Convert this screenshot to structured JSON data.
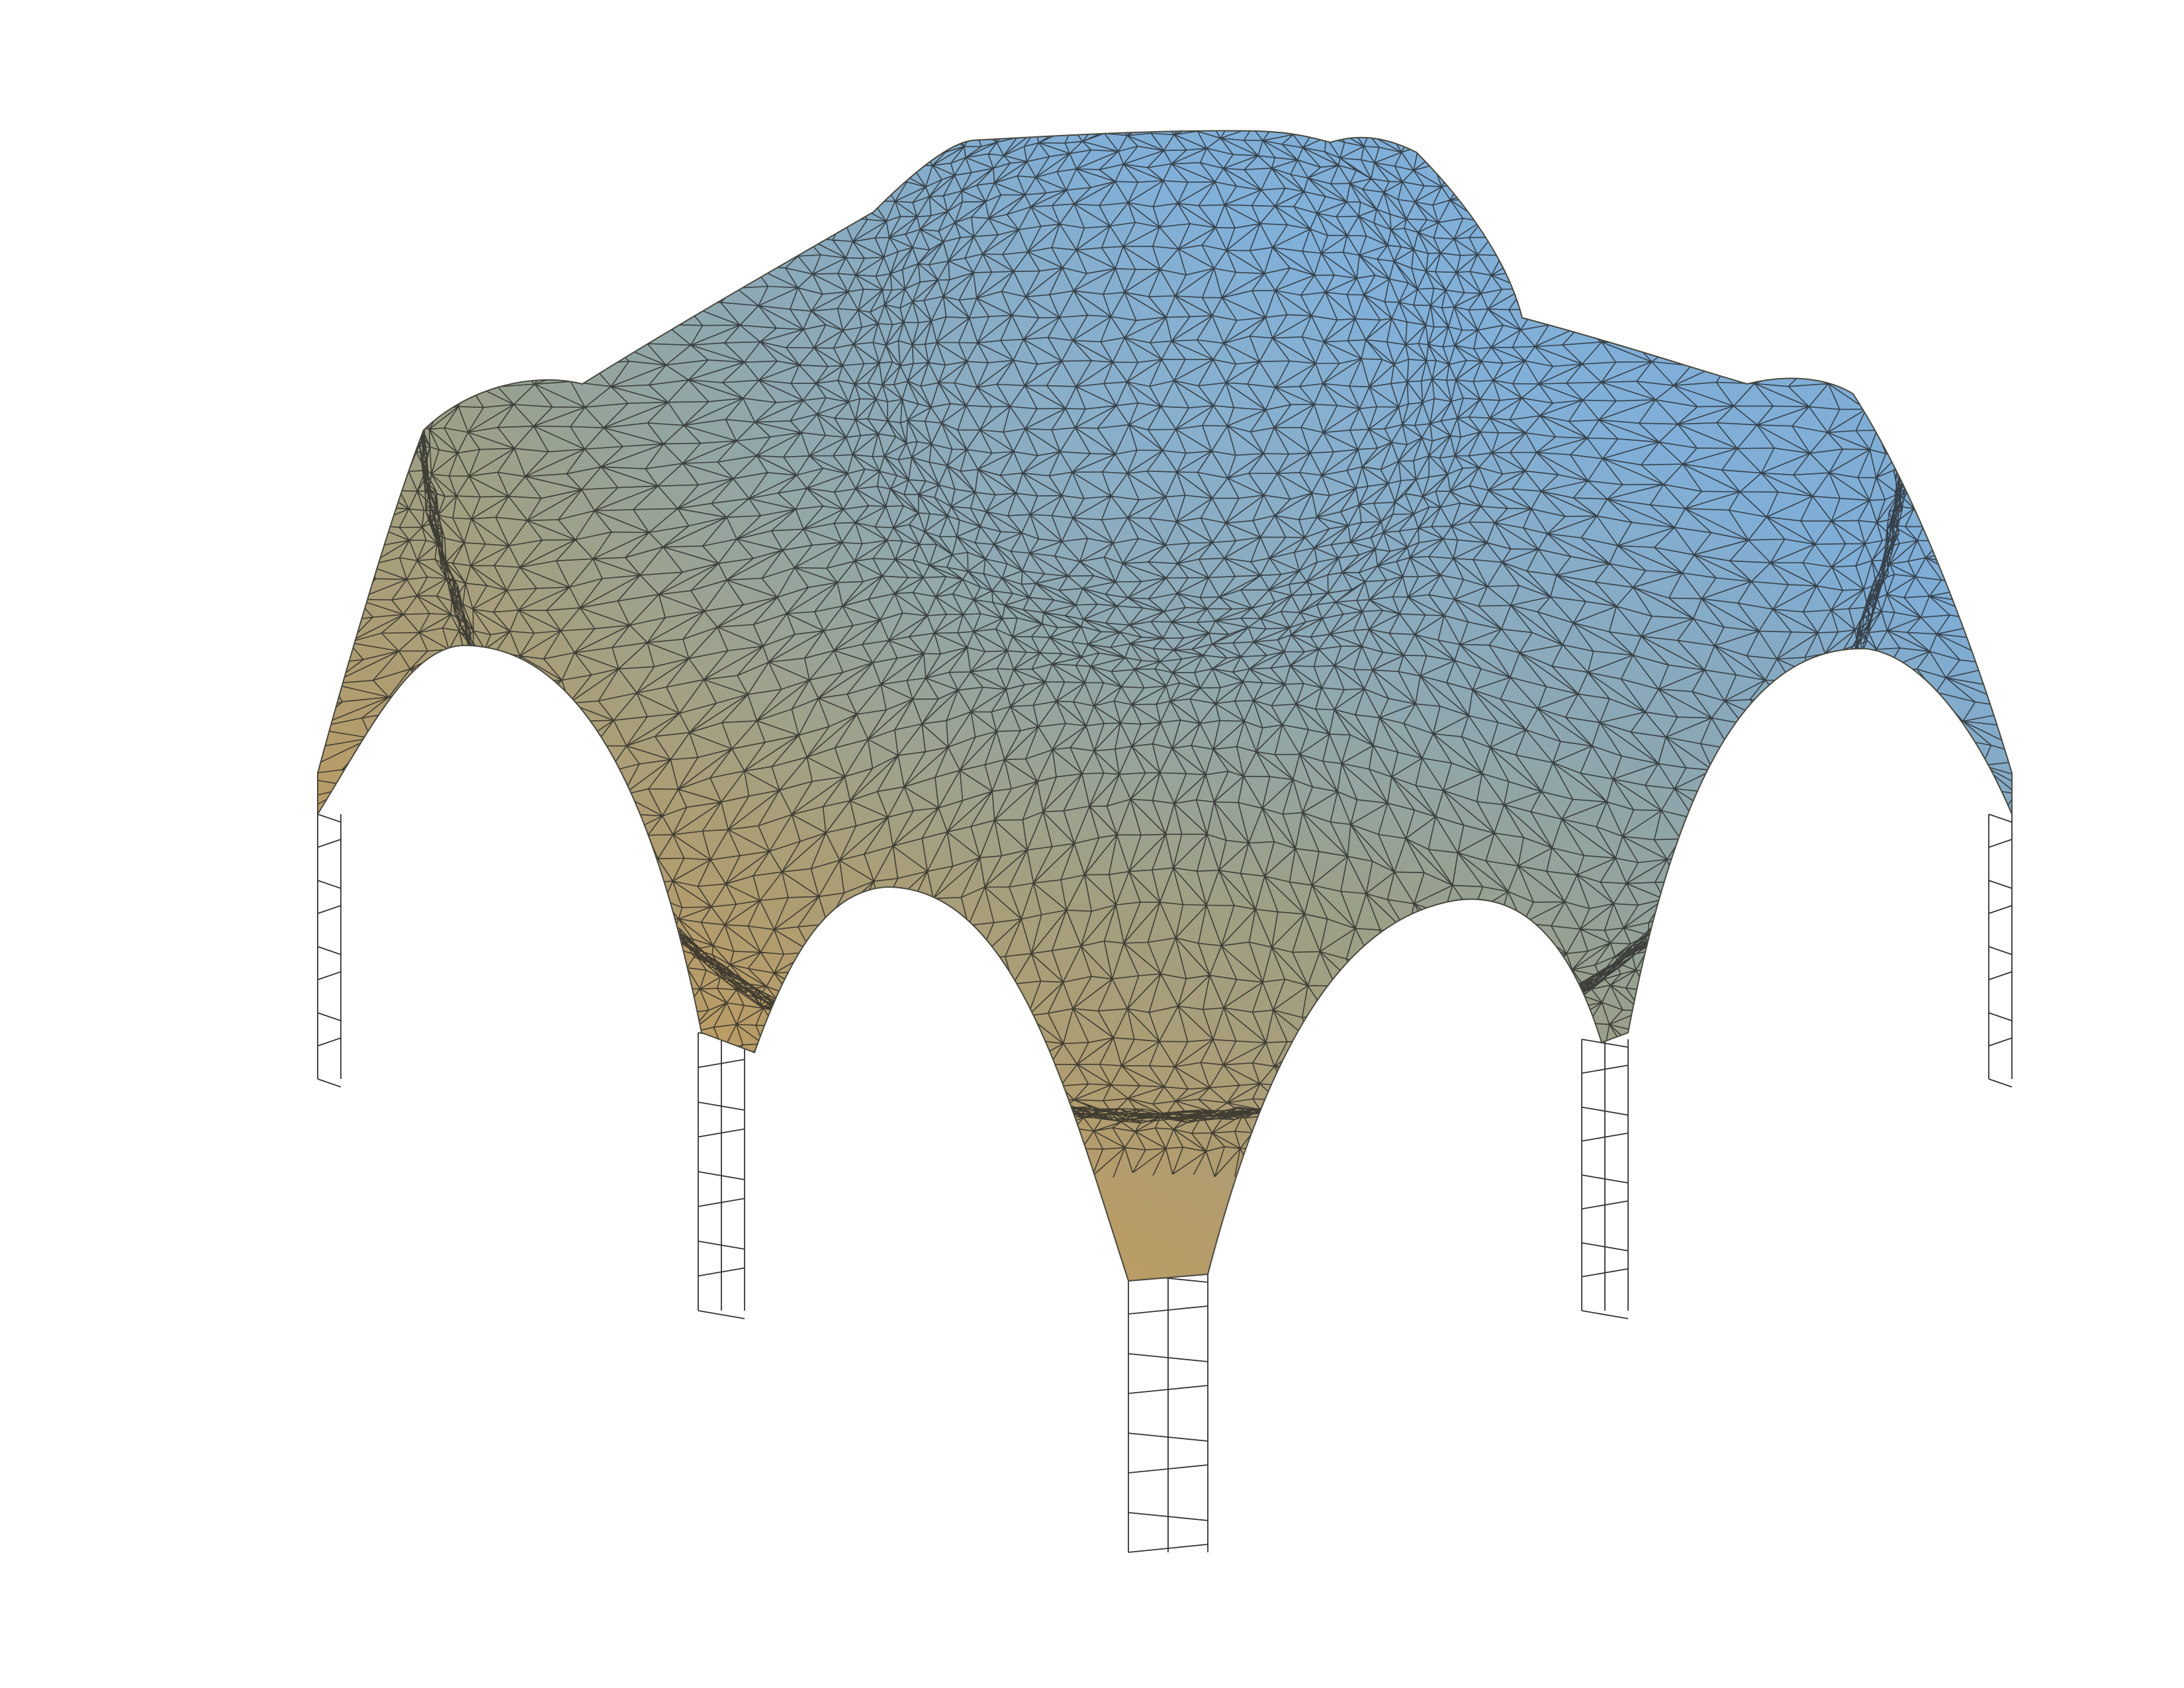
{
  "figure": {
    "subject": "shell-mesh",
    "colors": {
      "background": "#ffffff",
      "shell_top": "#7fadd6",
      "shell_mid": "#9aa08a",
      "shell_edge": "#c39a5a",
      "mesh_line": "#1e1e1e",
      "column_line": "#333333",
      "column_fill": "#ffffff"
    },
    "shell": {
      "name": "triangulated-shell-surface",
      "support_count": 6
    },
    "columns": {
      "count": 6,
      "names": [
        "column-front",
        "column-front-left",
        "column-front-right",
        "column-left",
        "column-right",
        "column-back"
      ]
    }
  }
}
